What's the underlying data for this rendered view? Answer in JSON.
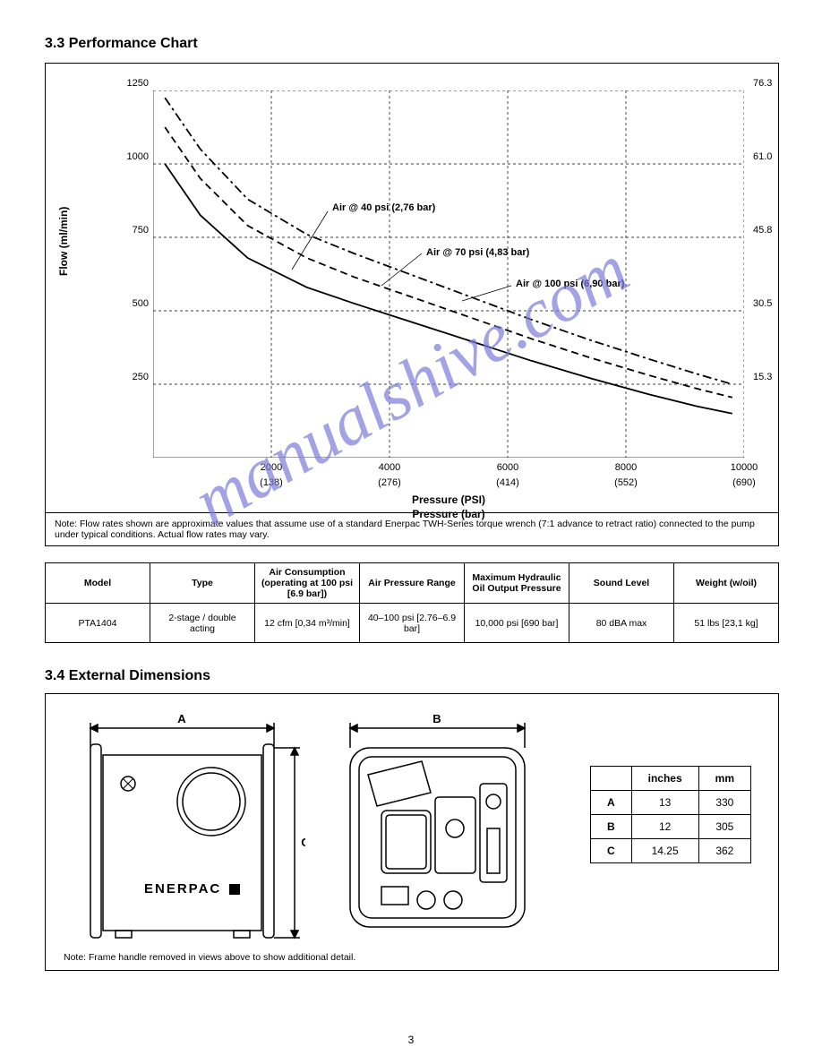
{
  "section_title": "3.3 Performance Chart",
  "chart": {
    "type": "line",
    "ylabel_left": "Flow (ml/min)",
    "xlabel_psi": "Pressure (PSI)",
    "xlabel_bar": "Pressure (bar)",
    "ytick_left": [
      "250",
      "500",
      "750",
      "1000",
      "1250"
    ],
    "ytick_right": [
      "15.3",
      "30.5",
      "45.8",
      "61.0",
      "76.3"
    ],
    "xtick_psi": [
      "2000",
      "4000",
      "6000",
      "8000",
      "10000"
    ],
    "xtick_bar": [
      "(138)",
      "(276)",
      "(414)",
      "(552)",
      "(690)"
    ],
    "xlim": [
      0,
      10000
    ],
    "ylim": [
      0,
      1250
    ],
    "grid_color": "#000000",
    "background_color": "#ffffff",
    "curves": [
      {
        "label": "Air @ 40 psi (2,76 bar)",
        "dash": "none",
        "points": [
          [
            200,
            1000
          ],
          [
            800,
            825
          ],
          [
            1600,
            680
          ],
          [
            2600,
            580
          ],
          [
            3400,
            525
          ],
          [
            4400,
            460
          ],
          [
            5400,
            395
          ],
          [
            6400,
            330
          ],
          [
            7400,
            270
          ],
          [
            8400,
            215
          ],
          [
            9200,
            175
          ],
          [
            9800,
            150
          ]
        ]
      },
      {
        "label": "Air @ 70 psi (4,83 bar)",
        "dash": "8,5",
        "points": [
          [
            200,
            1125
          ],
          [
            800,
            950
          ],
          [
            1600,
            790
          ],
          [
            2600,
            680
          ],
          [
            3400,
            615
          ],
          [
            4400,
            545
          ],
          [
            5400,
            475
          ],
          [
            6400,
            405
          ],
          [
            7400,
            340
          ],
          [
            8400,
            280
          ],
          [
            9200,
            235
          ],
          [
            9800,
            205
          ]
        ]
      },
      {
        "label": "Air @ 100 psi (6,90 bar)",
        "dash": "10,4,3,4",
        "points": [
          [
            200,
            1225
          ],
          [
            800,
            1050
          ],
          [
            1600,
            880
          ],
          [
            2600,
            760
          ],
          [
            3400,
            695
          ],
          [
            4400,
            620
          ],
          [
            5400,
            545
          ],
          [
            6400,
            470
          ],
          [
            7400,
            400
          ],
          [
            8400,
            335
          ],
          [
            9200,
            285
          ],
          [
            9800,
            250
          ]
        ]
      }
    ],
    "curve_label_positions": [
      {
        "x": 230,
        "y": 140
      },
      {
        "x": 340,
        "y": 188
      },
      {
        "x": 440,
        "y": 225
      }
    ],
    "note": "Note: Flow rates shown are approximate values that assume use of a standard Enerpac TWH-Series torque wrench (7:1 advance to retract ratio) connected to the pump under typical conditions. Actual flow rates may vary."
  },
  "spec_table": {
    "headers": [
      "Model",
      "Type",
      "Air Consumption (operating at 100 psi [6.9 bar])",
      "Air Pressure Range",
      "Maximum Hydraulic Oil Output Pressure",
      "Sound Level",
      "Weight (w/oil)"
    ],
    "row": [
      "PTA1404",
      "2-stage / double acting",
      "12 cfm [0,34 m³/min]",
      "40–100 psi [2.76–6.9 bar]",
      "10,000 psi [690 bar]",
      "80 dBA max",
      "51 lbs [23,1 kg]"
    ]
  },
  "dim_title": "3.4 External Dimensions",
  "dimensions": {
    "headers": [
      "inches",
      "mm"
    ],
    "rows": [
      [
        "A",
        "13",
        "330"
      ],
      [
        "B",
        "12",
        "305"
      ],
      [
        "C",
        "14.25",
        "362"
      ]
    ],
    "note": "Note: Frame handle removed in views above to show additional detail.",
    "brand_text": "ENERPAC"
  },
  "watermark_text": "manualshive.com",
  "page_number": "3"
}
